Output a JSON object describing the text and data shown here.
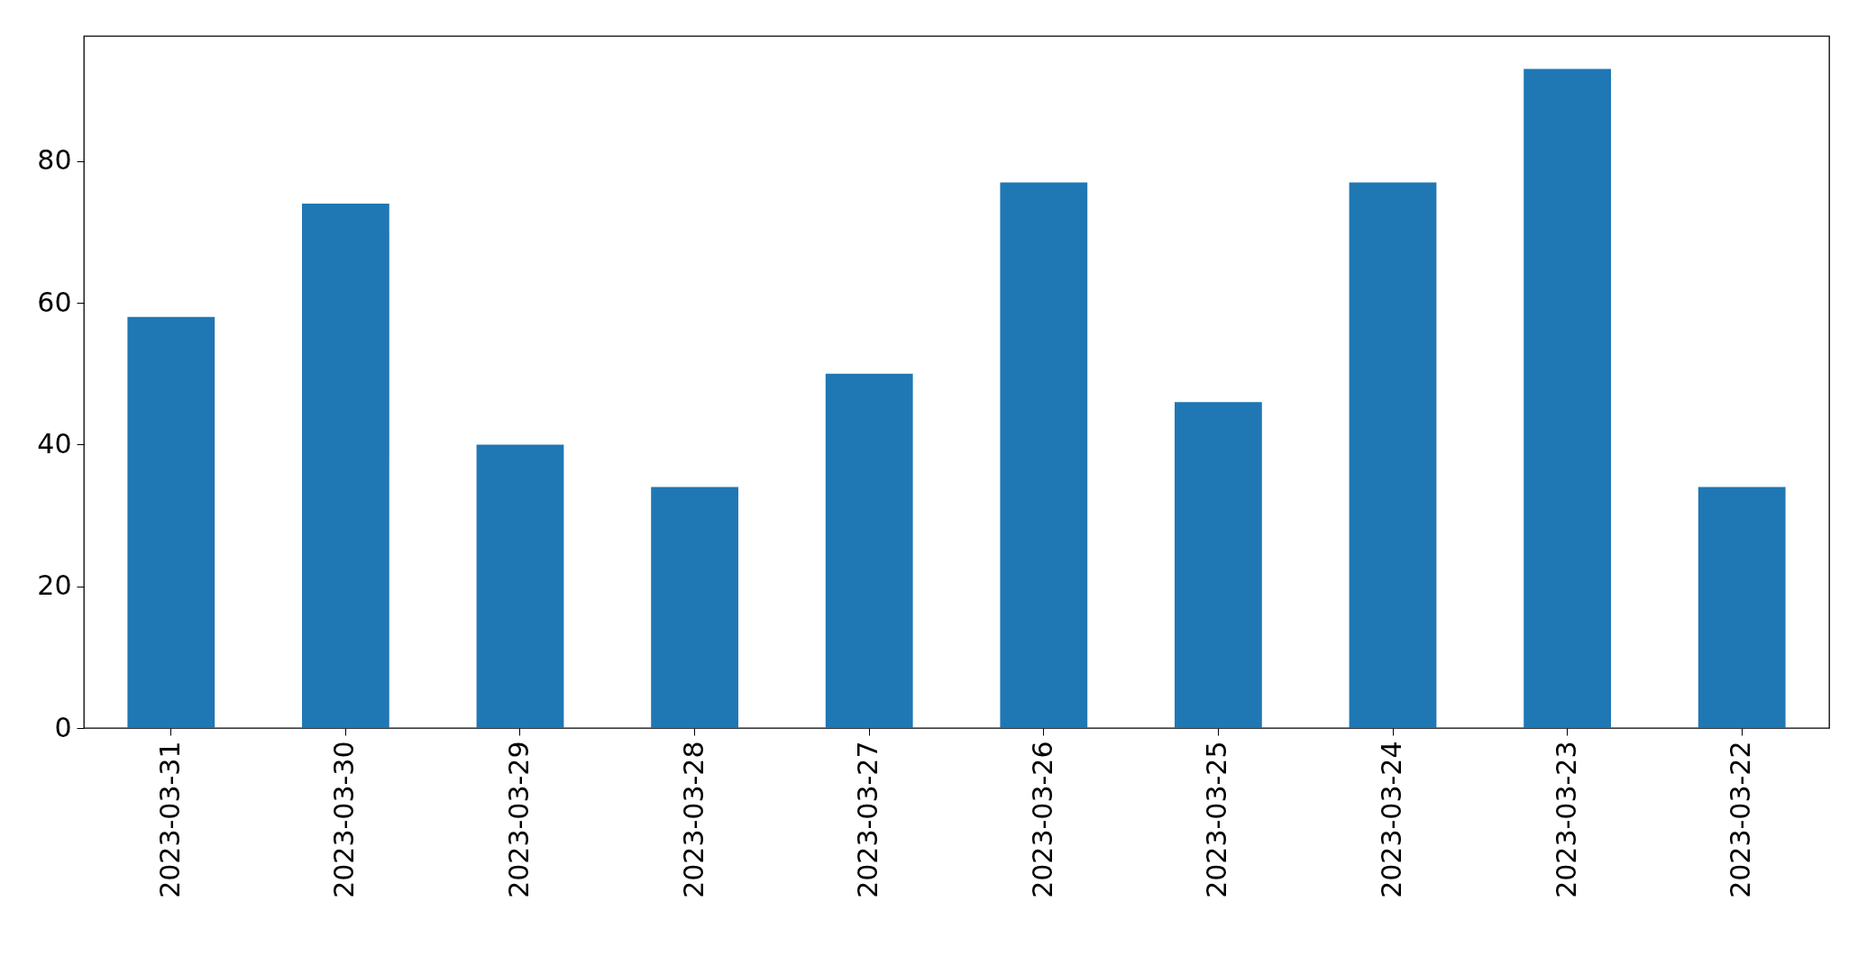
{
  "chart_data": {
    "type": "bar",
    "categories": [
      "2023-03-31",
      "2023-03-30",
      "2023-03-29",
      "2023-03-28",
      "2023-03-27",
      "2023-03-26",
      "2023-03-25",
      "2023-03-24",
      "2023-03-23",
      "2023-03-22"
    ],
    "values": [
      58,
      74,
      40,
      34,
      50,
      77,
      46,
      77,
      93,
      34
    ],
    "color": "#1f77b4",
    "ylim": [
      0,
      97.65
    ],
    "yticks": [
      0,
      20,
      40,
      60,
      80
    ],
    "grid": false
  }
}
